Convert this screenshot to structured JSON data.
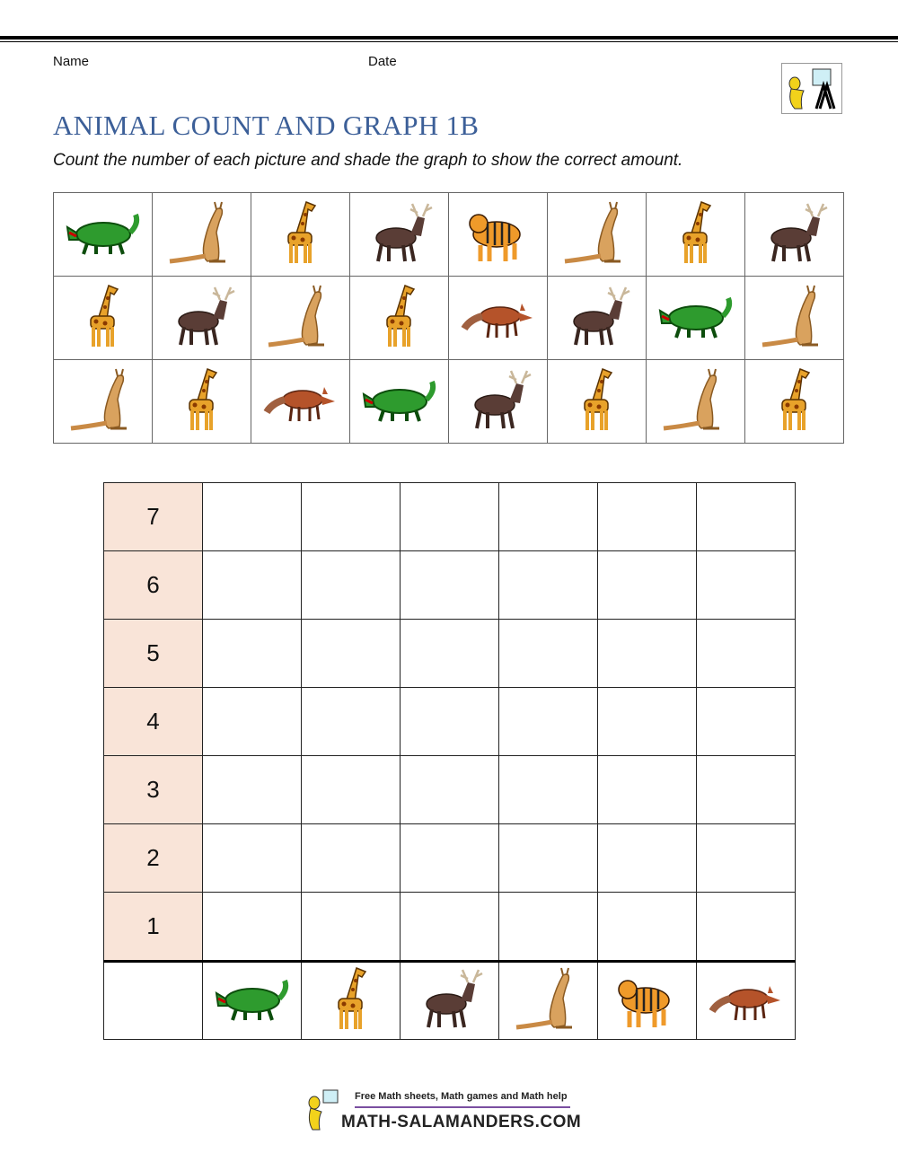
{
  "header": {
    "name_label": "Name",
    "date_label": "Date"
  },
  "title": "ANIMAL COUNT AND GRAPH 1B",
  "instructions": "Count the number of each picture and shade the graph to show the correct amount.",
  "picture_grid": [
    [
      "crocodile",
      "kangaroo",
      "giraffe",
      "deer",
      "tiger",
      "kangaroo",
      "giraffe",
      "deer"
    ],
    [
      "giraffe",
      "deer",
      "kangaroo",
      "giraffe",
      "fox",
      "deer",
      "crocodile",
      "kangaroo"
    ],
    [
      "kangaroo",
      "giraffe",
      "fox",
      "crocodile",
      "deer",
      "giraffe",
      "kangaroo",
      "giraffe"
    ]
  ],
  "graph": {
    "y_labels": [
      "7",
      "6",
      "5",
      "4",
      "3",
      "2",
      "1"
    ],
    "categories": [
      "crocodile",
      "giraffe",
      "deer",
      "kangaroo",
      "tiger",
      "fox"
    ],
    "shaded": [
      0,
      0,
      0,
      0,
      0,
      0
    ],
    "label_column_color": "#f9e4d8"
  },
  "footer": {
    "tagline": "Free Math sheets, Math games and Math help",
    "site": "MATH-SALAMANDERS.COM"
  },
  "colors": {
    "title": "#3c5f98"
  }
}
